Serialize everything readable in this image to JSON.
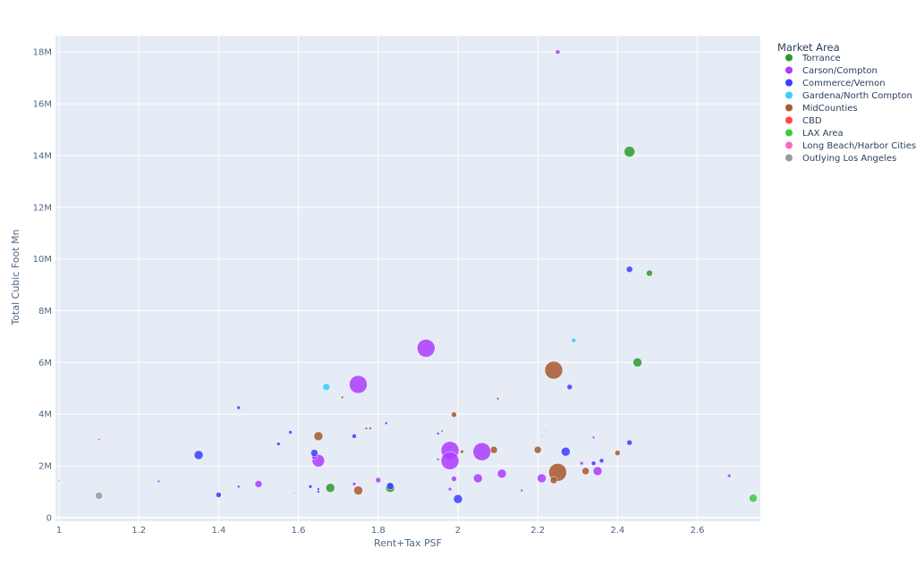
{
  "chart_data": {
    "type": "scatter",
    "subtype": "bubble",
    "xlabel": "Rent+Tax PSF",
    "ylabel": "Total Cubic Foot Mn",
    "xlim": [
      0.991,
      2.758
    ],
    "ylim": [
      -140000,
      18630000
    ],
    "xticks": [
      1,
      1.2,
      1.4,
      1.6,
      1.8,
      2,
      2.2,
      2.4,
      2.6
    ],
    "xtick_labels": [
      "1",
      "1.2",
      "1.4",
      "1.6",
      "1.8",
      "2",
      "2.2",
      "2.4",
      "2.6"
    ],
    "yticks": [
      0,
      2000000,
      4000000,
      6000000,
      8000000,
      10000000,
      12000000,
      14000000,
      16000000,
      18000000
    ],
    "ytick_labels": [
      "0",
      "2M",
      "4M",
      "6M",
      "8M",
      "10M",
      "12M",
      "14M",
      "16M",
      "18M"
    ],
    "grid": true,
    "plot_bgcolor": "#e5ecf6",
    "legend": {
      "title": "Market Area",
      "placement": "right"
    },
    "series": [
      {
        "name": "Torrance",
        "color": "#2e9a2e",
        "points": [
          [
            2.43,
            14150000,
            12
          ],
          [
            2.48,
            9450000,
            7
          ],
          [
            2.45,
            6000000,
            10
          ],
          [
            1.68,
            1150000,
            10
          ],
          [
            1.83,
            1150000,
            10
          ]
        ]
      },
      {
        "name": "Carson/Compton",
        "color": "#ab3cff",
        "points": [
          [
            2.25,
            18000000,
            5
          ],
          [
            1.92,
            6550000,
            20
          ],
          [
            1.75,
            5150000,
            20
          ],
          [
            1.65,
            2200000,
            14
          ],
          [
            1.98,
            2600000,
            20
          ],
          [
            1.98,
            2200000,
            20
          ],
          [
            2.06,
            2550000,
            20
          ],
          [
            2.11,
            1700000,
            10
          ],
          [
            2.05,
            1520000,
            10
          ],
          [
            2.21,
            1520000,
            10
          ],
          [
            2.35,
            1800000,
            10
          ],
          [
            1.99,
            1500000,
            6
          ],
          [
            1.98,
            1100000,
            4
          ],
          [
            1.5,
            1300000,
            8
          ],
          [
            1.8,
            1450000,
            6
          ],
          [
            1.25,
            1400000,
            3
          ],
          [
            2.68,
            1620000,
            4
          ],
          [
            2.31,
            2100000,
            4
          ],
          [
            2.34,
            3100000,
            3
          ],
          [
            1.64,
            2350000,
            6
          ],
          [
            1.74,
            1300000,
            4
          ],
          [
            2.16,
            1050000,
            3
          ],
          [
            1.95,
            2250000,
            3
          ]
        ]
      },
      {
        "name": "Commerce/Vernon",
        "color": "#3c3cff",
        "points": [
          [
            2.43,
            9600000,
            7
          ],
          [
            2.28,
            5050000,
            6
          ],
          [
            2.43,
            2900000,
            6
          ],
          [
            2.27,
            2550000,
            10
          ],
          [
            2.36,
            2200000,
            5
          ],
          [
            2.34,
            2100000,
            5
          ],
          [
            2.0,
            720000,
            10
          ],
          [
            1.83,
            1220000,
            8
          ],
          [
            1.35,
            2420000,
            10
          ],
          [
            1.4,
            880000,
            6
          ],
          [
            1.45,
            4250000,
            4
          ],
          [
            1.58,
            3300000,
            4
          ],
          [
            1.55,
            2850000,
            4
          ],
          [
            1.64,
            2500000,
            8
          ],
          [
            1.74,
            3150000,
            5
          ],
          [
            1.63,
            1200000,
            4
          ],
          [
            1.45,
            1200000,
            3
          ],
          [
            1.65,
            1100000,
            3
          ],
          [
            1.65,
            1000000,
            3
          ],
          [
            1.82,
            3650000,
            3
          ],
          [
            1.95,
            3250000,
            3
          ]
        ]
      },
      {
        "name": "Gardena/North Compton",
        "color": "#35cfff",
        "points": [
          [
            2.29,
            6850000,
            5
          ],
          [
            1.67,
            5050000,
            8
          ],
          [
            2.22,
            3350000,
            2
          ],
          [
            2.21,
            3150000,
            2
          ]
        ]
      },
      {
        "name": "MidCounties",
        "color": "#a9582e",
        "points": [
          [
            2.24,
            5700000,
            20
          ],
          [
            2.25,
            1750000,
            20
          ],
          [
            1.65,
            3150000,
            10
          ],
          [
            1.99,
            3980000,
            6
          ],
          [
            2.09,
            2620000,
            8
          ],
          [
            2.2,
            2620000,
            8
          ],
          [
            2.32,
            1800000,
            8
          ],
          [
            2.4,
            2500000,
            6
          ],
          [
            1.75,
            1050000,
            10
          ],
          [
            2.24,
            1450000,
            8
          ],
          [
            2.1,
            4600000,
            3
          ],
          [
            1.71,
            4650000,
            3
          ],
          [
            1.77,
            3450000,
            3
          ],
          [
            1.78,
            3450000,
            3
          ],
          [
            2.01,
            2550000,
            4
          ],
          [
            1.96,
            3350000,
            2.5
          ]
        ]
      },
      {
        "name": "CBD",
        "color": "#ff4545",
        "points": [
          [
            1.1,
            3020000,
            2.5
          ]
        ]
      },
      {
        "name": "LAX Area",
        "color": "#3acc3a",
        "points": [
          [
            2.74,
            750000,
            9
          ]
        ]
      },
      {
        "name": "Long Beach/Harbor Cities",
        "color": "#ff66c4",
        "points": [
          [
            1.59,
            950000,
            2
          ]
        ]
      },
      {
        "name": "Outlying Los Angeles",
        "color": "#999999",
        "points": [
          [
            1.1,
            850000,
            8
          ],
          [
            1.0,
            1420000,
            2
          ]
        ]
      }
    ]
  }
}
